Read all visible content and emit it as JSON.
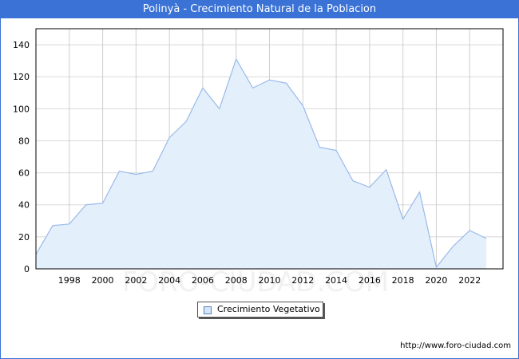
{
  "header": {
    "title": "Polinyà - Crecimiento Natural de la Poblacion"
  },
  "footer": {
    "url": "http://www.foro-ciudad.com"
  },
  "watermark": "FORO-CIUDAD.COM",
  "colors": {
    "title_bg": "#3a72d6",
    "line": "#9ab9e8",
    "fill": "#e3f0fc",
    "grid": "#d8d8d8"
  },
  "chart_data": {
    "type": "area",
    "title": "Polinyà - Crecimiento Natural de la Poblacion",
    "xlabel": "",
    "ylabel": "",
    "x": [
      1996,
      1997,
      1998,
      1999,
      2000,
      2001,
      2002,
      2003,
      2004,
      2005,
      2006,
      2007,
      2008,
      2009,
      2010,
      2011,
      2012,
      2013,
      2014,
      2015,
      2016,
      2017,
      2018,
      2019,
      2020,
      2021,
      2022,
      2023
    ],
    "series": [
      {
        "name": "Crecimiento Vegetativo",
        "values": [
          9,
          27,
          28,
          40,
          41,
          61,
          59,
          61,
          82,
          92,
          113,
          100,
          131,
          113,
          118,
          116,
          102,
          76,
          74,
          55,
          51,
          62,
          31,
          48,
          1,
          14,
          24,
          19
        ]
      }
    ],
    "x_ticks": [
      "1998",
      "2000",
      "2002",
      "2004",
      "2006",
      "2008",
      "2010",
      "2012",
      "2014",
      "2016",
      "2018",
      "2020",
      "2022"
    ],
    "y_ticks": [
      "0",
      "20",
      "40",
      "60",
      "80",
      "100",
      "120",
      "140"
    ],
    "ylim": [
      0,
      150
    ],
    "xlim": [
      1996,
      2024
    ],
    "grid": true,
    "legend_position": "bottom-center"
  },
  "legend": {
    "items": [
      {
        "label": "Crecimiento Vegetativo"
      }
    ]
  }
}
